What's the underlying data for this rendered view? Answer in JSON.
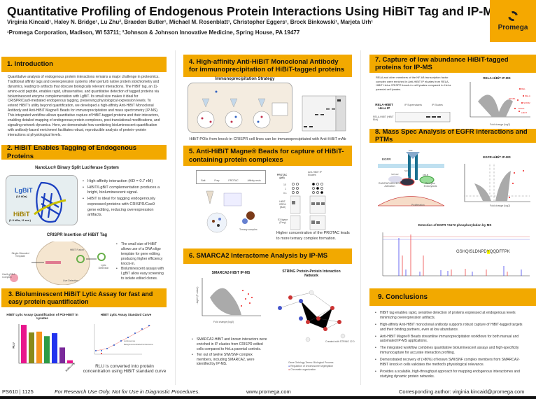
{
  "header": {
    "title": "Quantitative Profiling of Endogenous Protein Interactions Using HiBiT Tag and IP-MS",
    "authors": "Virginia Kincaid¹, Haley N. Bridge¹, Lu Zhu², Braeden Butler¹, Michael M. Rosenblatt¹, Christopher Eggers¹, Brock Binkowski¹, Marjeta Urh¹",
    "affiliations": "¹Promega Corporation, Madison, WI 53711; ²Johnson & Johnson Innovative Medicine, Spring House, PA 19477",
    "logo_text": "Promega",
    "logo_color": "#F5A800"
  },
  "accent_color": "#F2A900",
  "s1": {
    "heading": "1.  Introduction",
    "text": "Quantitative analysis of endogenous protein interactions remains a major challenge in proteomics. Traditional affinity tags and overexpression systems often perturb native protein stoichiometry and dynamics, leading to artifacts that obscure biologically relevant interactions. The HiBiT tag, an 11-amino-acid peptide, enables rapid, ultrasensitive, and quantitative detection of tagged proteins via bioluminescent enzyme complementation with LgBiT. Its small size makes it ideal for CRISPR/Cas9-mediated endogenous tagging, preserving physiological expression levels. To extend HiBiT's utility beyond quantification, we developed a high-affinity Anti-HiBiT Monoclonal Antibody and Anti-HiBiT Magne® Beads for immunoprecipitation and mass spectrometry (IP-MS). This integrated workflow allows quantitative capture of HiBiT-tagged proteins and their interactors, enabling detailed mapping of endogenous protein complexes, post-translational modifications, and signaling network dynamics. Here, we demonstrate how combining bioluminescent quantification with antibody-based enrichment facilitates robust, reproducible analysis of protein–protein interactions at physiological levels."
  },
  "s2": {
    "heading": "2.  HiBiT Enables Tagging of Endogenous Proteins",
    "fig1_title": "NanoLuc® Binary Split Luciferase System",
    "lgbit": "LgBiT",
    "lgbit_sub": "(18 kDa)",
    "hibit": "HiBiT",
    "hibit_sub": "(1.3 kDa, 11 a.a.)",
    "bullets1": [
      "High-affinity interaction (KD = 0.7 nM)",
      "HiBiT/LgBiT complementation produces a bright, bioluminescent signal.",
      "HiBiT is ideal for tagging endogenously expressed proteins with CRISPR/Cas9 gene editing, reducing overexpression artifacts."
    ],
    "fig2_title": "CRISPR Insertion of HiBiT Tag",
    "labels": {
      "template": "Single-Stranded Template",
      "cas9": "Cas9-gRNA Complex",
      "fusion": "HiBiT Fusion",
      "lytic": "Lytic Detection",
      "live": "Live Detection"
    },
    "bullets2": [
      "The small size of HiBiT allows use of a DNA oligo template for gene editing, producing higher efficiency knock-in.",
      "Bioluminescent assays with LgBiT allow easy screening to isolate edited clones."
    ]
  },
  "s3": {
    "heading": "3.  Bioluminescent HiBiT Lytic Assay for fast and easy protein quantification",
    "chart1_title": "HiBiT Lytic Assay Quantification of POI-HiBiT in Lysates",
    "chart1_ylabel": "RLU",
    "chart1_bars": [
      {
        "value": 7,
        "color": "#e8168c"
      },
      {
        "value": 6,
        "color": "#8a8a1a"
      },
      {
        "value": 6.1,
        "color": "#f7941d"
      },
      {
        "value": 5.5,
        "color": "#2e9b46"
      },
      {
        "value": 5.9,
        "color": "#2233ee"
      },
      {
        "value": 4,
        "color": "#7a2a9a"
      },
      {
        "value": 2.3,
        "color": "#e8168c"
      }
    ],
    "chart1_last_label": "Buffer only",
    "chart2_title": "HiBiT Lytic Assay Standard Curve",
    "chart2_legend": [
      "Luminescence",
      "Background-subtracted luminescence"
    ],
    "caption": "RLU is converted into protein concentration using HiBiT standard curve"
  },
  "s4": {
    "heading": "4.  High-affinity Anti-HiBiT Monoclonal Antibody for immunoprecipitation of HiBiT-tagged proteins",
    "fig_title": "Immunoprecipitation Strategy",
    "caption": "HiBiT-POIs from knock-in CRISPR cell lines can be immunoprecipitated with Anti-HiBiT mAb"
  },
  "s5": {
    "heading": "5.  Anti-HiBiT Magne® Beads for capture of HiBiT-containing protein complexes",
    "legend": [
      "Bait",
      "Prey",
      "PROTAC",
      "Affinity resin"
    ],
    "ternary": "Ternary complex",
    "protac_label": "PROTAC (µM)",
    "concs": [
      "10",
      "1",
      "0.1"
    ],
    "eluate": "Anti-HiBiT IP Eluates",
    "bait": "HiBiT-BRD4 (Bait)",
    "prey": "E3 ligase (Prey)",
    "caption": "Higher concentration of the PROTAC leads to more ternary complex formation."
  },
  "s6": {
    "heading": "6.  SMARCA2 Interactome Analysis by IP-MS",
    "volcano_title": "SMARCA2-HiBiT IP-MS",
    "xlabel": "Fold change (log2)",
    "ylabel": "-log10 (P-value)",
    "network_title": "STRING Protein-Protein Interaction Network",
    "network_credit": "Created with STRING 12.0",
    "go_title": "Gene Ontology Terms: Biological Process",
    "go": [
      {
        "label": "Regulation of chromosome segregation",
        "color": "#4455cc"
      },
      {
        "label": "Chromatin organization",
        "color": "#cc3333"
      }
    ],
    "bullets": [
      "SMARCA2-HiBiT and known interactors were enriched in IP eluates from CRISPR edited cells compared to HeLa parental controls.",
      "Ten out of twelve SWI/SNF complex members, including SMARCA2, were identified by IP-MS."
    ]
  },
  "s7": {
    "heading": "7.  Capture of low abundance HiBiT-tagged proteins for IP-MS",
    "text": "RELA and other members of the NF-kB transcription factor complex were enriched in Anti-HiBiT IP eluates from RELA-HiBiT HeLa CRISPR knock-in cell lysates compared to HeLa parental cell lysates.",
    "blot_label": "RELA-HiBiT HeLa IP",
    "sup": "IP Supernatants",
    "elu": "IP Eluates",
    "lysate": "Lysate",
    "band_label": "RELA-HiBiT (HiBiT Blot)",
    "volcano_title": "RELA-HiBiT IP-MS",
    "xlabel": "Fold change (log2)",
    "hits": [
      "REL",
      "RELA",
      "NFKB1",
      "NFKB2",
      "TCEA1",
      "LMO7"
    ]
  },
  "s8": {
    "heading": "8.  Mass Spec Analysis of EGFR interactions and PTMs",
    "labels": {
      "egfr": "EGFR",
      "egf": "EGF",
      "grb2": "GRB2",
      "sos": "SOS1/2",
      "shc": "SHC",
      "cbl": "CBLB",
      "ras": "RAS/RAF/MEK/ERK Activation",
      "endo": "Receptor Endocytosis",
      "prolif": "Proliferation"
    },
    "volcano_title": "EGFR-HiBiT IP-MS",
    "xlabel": "Fold change (log2)",
    "spectrum_title": "Detection of EGFR Y1172 phosphorylation by MS",
    "peptide_pre": "GSHQISLDNPD",
    "peptide_mod": "Y",
    "peptide_post": "QQDFFPK"
  },
  "s9": {
    "heading": "9.  Conclusions",
    "bullets": [
      "HiBiT tag enables rapid, sensitive detection of proteins expressed at endogenous levels minimizing overexpression artifacts.",
      "High-affinity Anti-HiBiT monoclonal antibody supports robust capture of HiBiT-tagged targets and their binding partners, even at low abundance.",
      "Anti-HiBiT Magne® Beads streamline immunoprecipitation workflows for both manual and automated IP-MS applications.",
      "The integrated workflow combines quantitative bioluminescent assays and high-specificity immunocapture for accurate interaction profiling.",
      "Demonstrated recovery of (>80%) of known SWI/SNF complex members from SMARCA2-HiBiT knock-in cells validates the method's physiological relevance.",
      "Provides a scalable, high-throughput approach for mapping endogenous interactomes and studying dynamic protein networks."
    ]
  },
  "footer": {
    "code": "PS610 | 1125",
    "disclaimer": "For Research Use Only. Not for Use in Diagnostic Procedures.",
    "url": "www.promega.com",
    "contact": "Corresponding author: virginia.kincaid@promega.com"
  }
}
